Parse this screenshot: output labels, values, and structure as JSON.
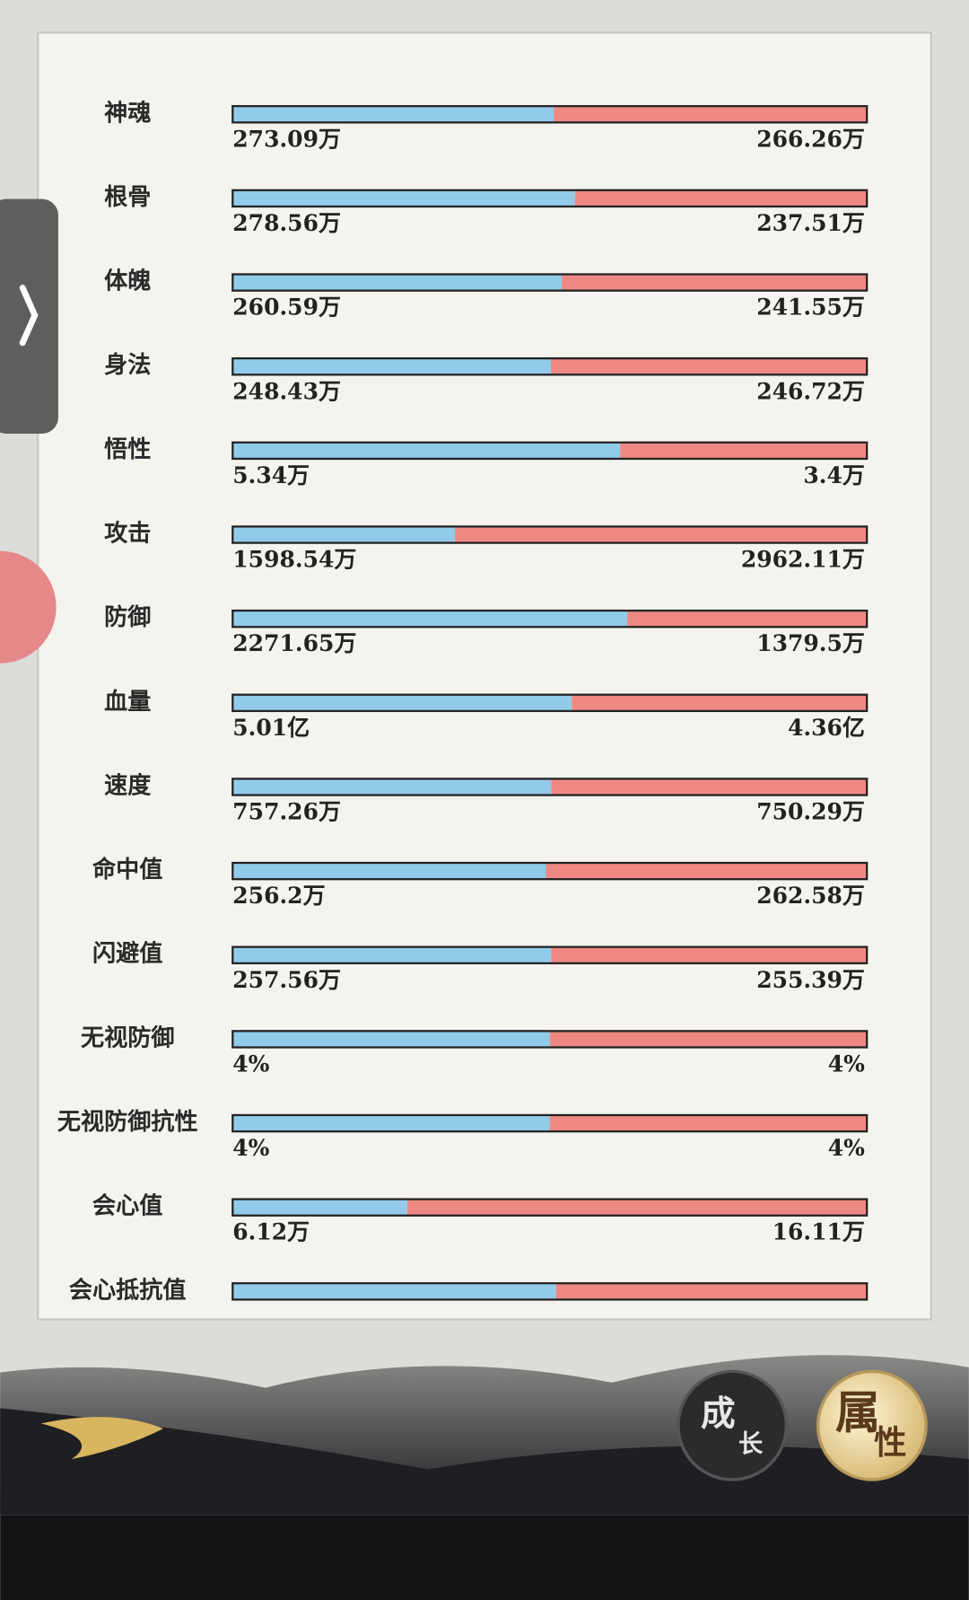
{
  "rows": [
    {
      "label": "神魂",
      "left": {
        "value": 273.09,
        "label": "273.09万"
      },
      "right": {
        "value": 266.26,
        "label": "266.26万"
      }
    },
    {
      "label": "根骨",
      "left": {
        "value": 278.56,
        "label": "278.56万"
      },
      "right": {
        "value": 237.51,
        "label": "237.51万"
      }
    },
    {
      "label": "体魄",
      "left": {
        "value": 260.59,
        "label": "260.59万"
      },
      "right": {
        "value": 241.55,
        "label": "241.55万"
      }
    },
    {
      "label": "身法",
      "left": {
        "value": 248.43,
        "label": "248.43万"
      },
      "right": {
        "value": 246.72,
        "label": "246.72万"
      }
    },
    {
      "label": "悟性",
      "left": {
        "value": 5.34,
        "label": "5.34万"
      },
      "right": {
        "value": 3.4,
        "label": "3.4万"
      }
    },
    {
      "label": "攻击",
      "left": {
        "value": 1598.54,
        "label": "1598.54万"
      },
      "right": {
        "value": 2962.11,
        "label": "2962.11万"
      }
    },
    {
      "label": "防御",
      "left": {
        "value": 2271.65,
        "label": "2271.65万"
      },
      "right": {
        "value": 1379.5,
        "label": "1379.5万"
      }
    },
    {
      "label": "血量",
      "left": {
        "value": 5.01,
        "label": "5.01亿"
      },
      "right": {
        "value": 4.36,
        "label": "4.36亿"
      }
    },
    {
      "label": "速度",
      "left": {
        "value": 757.26,
        "label": "757.26万"
      },
      "right": {
        "value": 750.29,
        "label": "750.29万"
      }
    },
    {
      "label": "命中值",
      "left": {
        "value": 256.2,
        "label": "256.2万"
      },
      "right": {
        "value": 262.58,
        "label": "262.58万"
      }
    },
    {
      "label": "闪避值",
      "left": {
        "value": 257.56,
        "label": "257.56万"
      },
      "right": {
        "value": 255.39,
        "label": "255.39万"
      }
    },
    {
      "label": "无视防御",
      "left": {
        "value": 4,
        "label": "4%"
      },
      "right": {
        "value": 4,
        "label": "4%"
      }
    },
    {
      "label": "无视防御抗性",
      "left": {
        "value": 4,
        "label": "4%"
      },
      "right": {
        "value": 4,
        "label": "4%"
      }
    },
    {
      "label": "会心值",
      "left": {
        "value": 6.12,
        "label": "6.12万"
      },
      "right": {
        "value": 16.11,
        "label": "16.11万"
      }
    },
    {
      "label": "会心抵抗值",
      "left": {
        "value": 51
      },
      "right": {
        "value": 49
      }
    }
  ],
  "buttons": [
    {
      "chars": [
        "成",
        "长"
      ]
    },
    {
      "chars": [
        "属",
        "性"
      ]
    }
  ]
}
